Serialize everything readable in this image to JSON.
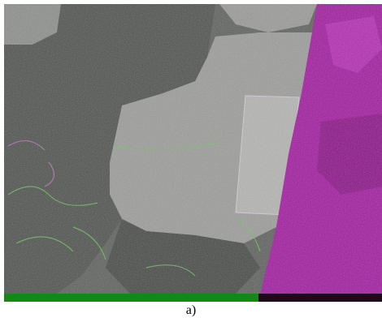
{
  "caption": "a)"
}
